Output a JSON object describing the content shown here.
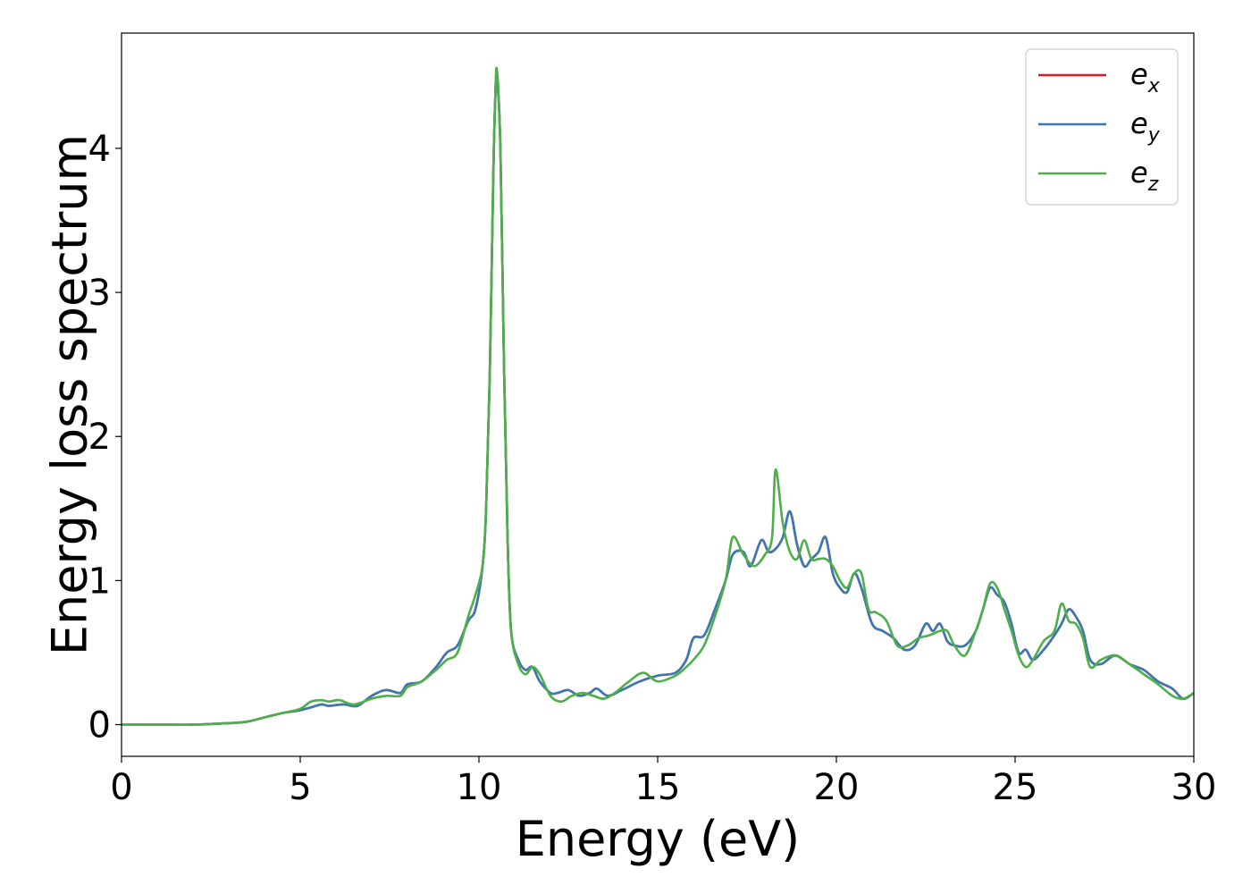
{
  "chart_data": {
    "type": "line",
    "title": "",
    "xlabel": "Energy (eV)",
    "ylabel": "Energy loss spectrum",
    "xlim": [
      0,
      30
    ],
    "ylim": [
      -0.22,
      4.8
    ],
    "xticks": [
      0,
      5,
      10,
      15,
      20,
      25,
      30
    ],
    "yticks": [
      0,
      1,
      2,
      3,
      4
    ],
    "xtick_labels": [
      "0",
      "5",
      "10",
      "15",
      "20",
      "25",
      "30"
    ],
    "ytick_labels": [
      "0",
      "1",
      "2",
      "3",
      "4"
    ],
    "grid": false,
    "legend_position": "top-right",
    "series": [
      {
        "name": "e_x",
        "legend_base": "e",
        "legend_sub": "x",
        "color": "#e41a1c",
        "x": [
          0,
          1,
          2,
          3,
          3.5,
          4,
          4.5,
          5,
          5.3,
          5.6,
          5.8,
          6.2,
          6.6,
          7,
          7.4,
          7.8,
          8,
          8.4,
          8.8,
          9.1,
          9.4,
          9.7,
          9.9,
          10.1,
          10.2,
          10.3,
          10.4,
          10.45,
          10.5,
          10.6,
          10.7,
          10.8,
          10.9,
          11.1,
          11.3,
          11.5,
          11.7,
          12,
          12.2,
          12.5,
          12.8,
          13.1,
          13.3,
          13.6,
          14,
          14.5,
          15,
          15.5,
          15.8,
          16,
          16.3,
          16.6,
          16.9,
          17.1,
          17.4,
          17.6,
          17.9,
          18.1,
          18.3,
          18.5,
          18.7,
          18.9,
          19.1,
          19.3,
          19.5,
          19.7,
          19.9,
          20.1,
          20.3,
          20.5,
          20.7,
          21,
          21.3,
          21.6,
          21.9,
          22.2,
          22.5,
          22.7,
          22.9,
          23.1,
          23.3,
          23.6,
          23.9,
          24.1,
          24.3,
          24.5,
          24.7,
          24.9,
          25.1,
          25.3,
          25.5,
          25.8,
          26.1,
          26.3,
          26.5,
          26.7,
          26.9,
          27.1,
          27.4,
          27.8,
          28.2,
          28.6,
          29,
          29.4,
          29.7,
          30
        ],
        "y": [
          0,
          0,
          0,
          0.01,
          0.02,
          0.05,
          0.08,
          0.1,
          0.12,
          0.14,
          0.13,
          0.14,
          0.13,
          0.2,
          0.24,
          0.22,
          0.28,
          0.3,
          0.4,
          0.5,
          0.55,
          0.72,
          0.8,
          1.1,
          1.5,
          2.4,
          3.8,
          4.3,
          4.5,
          4.0,
          2.5,
          1.3,
          0.65,
          0.45,
          0.38,
          0.4,
          0.3,
          0.22,
          0.22,
          0.24,
          0.2,
          0.22,
          0.25,
          0.2,
          0.24,
          0.3,
          0.34,
          0.36,
          0.45,
          0.6,
          0.62,
          0.8,
          1.0,
          1.18,
          1.2,
          1.1,
          1.28,
          1.2,
          1.22,
          1.3,
          1.48,
          1.25,
          1.1,
          1.15,
          1.2,
          1.3,
          1.05,
          0.95,
          0.92,
          1.05,
          0.95,
          0.7,
          0.65,
          0.6,
          0.52,
          0.55,
          0.7,
          0.65,
          0.7,
          0.58,
          0.55,
          0.55,
          0.65,
          0.8,
          0.95,
          0.9,
          0.85,
          0.7,
          0.5,
          0.52,
          0.45,
          0.52,
          0.62,
          0.7,
          0.8,
          0.75,
          0.65,
          0.45,
          0.42,
          0.48,
          0.42,
          0.38,
          0.3,
          0.25,
          0.18,
          0.22
        ]
      },
      {
        "name": "e_y",
        "legend_base": "e",
        "legend_sub": "y",
        "color": "#3a78b5",
        "x": [
          0,
          1,
          2,
          3,
          3.5,
          4,
          4.5,
          5,
          5.3,
          5.6,
          5.8,
          6.2,
          6.6,
          7,
          7.4,
          7.8,
          8,
          8.4,
          8.8,
          9.1,
          9.4,
          9.7,
          9.9,
          10.1,
          10.2,
          10.3,
          10.4,
          10.45,
          10.5,
          10.6,
          10.7,
          10.8,
          10.9,
          11.1,
          11.3,
          11.5,
          11.7,
          12,
          12.2,
          12.5,
          12.8,
          13.1,
          13.3,
          13.6,
          14,
          14.5,
          15,
          15.5,
          15.8,
          16,
          16.3,
          16.6,
          16.9,
          17.1,
          17.4,
          17.6,
          17.9,
          18.1,
          18.3,
          18.5,
          18.7,
          18.9,
          19.1,
          19.3,
          19.5,
          19.7,
          19.9,
          20.1,
          20.3,
          20.5,
          20.7,
          21,
          21.3,
          21.6,
          21.9,
          22.2,
          22.5,
          22.7,
          22.9,
          23.1,
          23.3,
          23.6,
          23.9,
          24.1,
          24.3,
          24.5,
          24.7,
          24.9,
          25.1,
          25.3,
          25.5,
          25.8,
          26.1,
          26.3,
          26.5,
          26.7,
          26.9,
          27.1,
          27.4,
          27.8,
          28.2,
          28.6,
          29,
          29.4,
          29.7,
          30
        ],
        "y": [
          0,
          0,
          0,
          0.01,
          0.02,
          0.05,
          0.08,
          0.1,
          0.12,
          0.14,
          0.13,
          0.14,
          0.13,
          0.2,
          0.24,
          0.22,
          0.28,
          0.3,
          0.4,
          0.5,
          0.55,
          0.72,
          0.8,
          1.1,
          1.5,
          2.4,
          3.8,
          4.3,
          4.5,
          4.0,
          2.5,
          1.3,
          0.65,
          0.45,
          0.38,
          0.4,
          0.3,
          0.22,
          0.22,
          0.24,
          0.2,
          0.22,
          0.25,
          0.2,
          0.24,
          0.3,
          0.34,
          0.36,
          0.45,
          0.6,
          0.62,
          0.8,
          1.0,
          1.18,
          1.2,
          1.1,
          1.28,
          1.2,
          1.22,
          1.3,
          1.48,
          1.25,
          1.1,
          1.15,
          1.2,
          1.3,
          1.05,
          0.95,
          0.92,
          1.05,
          0.95,
          0.7,
          0.65,
          0.6,
          0.52,
          0.55,
          0.7,
          0.65,
          0.7,
          0.58,
          0.55,
          0.55,
          0.65,
          0.8,
          0.95,
          0.9,
          0.85,
          0.7,
          0.5,
          0.52,
          0.45,
          0.52,
          0.62,
          0.7,
          0.8,
          0.75,
          0.65,
          0.45,
          0.42,
          0.48,
          0.42,
          0.38,
          0.3,
          0.25,
          0.18,
          0.22
        ]
      },
      {
        "name": "e_z",
        "legend_base": "e",
        "legend_sub": "z",
        "color": "#4daf4a",
        "x": [
          0,
          1,
          2,
          3,
          3.5,
          4,
          4.5,
          5,
          5.3,
          5.6,
          5.8,
          6.1,
          6.5,
          7,
          7.4,
          7.8,
          8,
          8.4,
          8.8,
          9.1,
          9.4,
          9.7,
          9.9,
          10.1,
          10.2,
          10.3,
          10.4,
          10.45,
          10.5,
          10.6,
          10.7,
          10.8,
          10.9,
          11.1,
          11.3,
          11.5,
          11.7,
          12,
          12.3,
          12.6,
          12.9,
          13.2,
          13.5,
          13.8,
          14.2,
          14.6,
          15,
          15.5,
          15.8,
          16,
          16.3,
          16.6,
          16.9,
          17.1,
          17.4,
          17.7,
          18,
          18.2,
          18.3,
          18.5,
          18.7,
          18.9,
          19.1,
          19.3,
          19.5,
          19.7,
          19.9,
          20.1,
          20.3,
          20.5,
          20.7,
          20.9,
          21.1,
          21.4,
          21.7,
          22,
          22.3,
          22.6,
          22.9,
          23.1,
          23.3,
          23.6,
          23.9,
          24.1,
          24.3,
          24.5,
          24.7,
          24.9,
          25.1,
          25.3,
          25.5,
          25.8,
          26.1,
          26.3,
          26.5,
          26.7,
          26.9,
          27.1,
          27.4,
          27.8,
          28.2,
          28.6,
          29,
          29.4,
          29.7,
          30
        ],
        "y": [
          0,
          0,
          0,
          0.01,
          0.02,
          0.05,
          0.08,
          0.11,
          0.16,
          0.17,
          0.16,
          0.17,
          0.14,
          0.18,
          0.2,
          0.2,
          0.26,
          0.3,
          0.38,
          0.45,
          0.5,
          0.75,
          0.9,
          1.1,
          1.5,
          2.4,
          3.8,
          4.3,
          4.55,
          4.0,
          2.5,
          1.3,
          0.65,
          0.42,
          0.35,
          0.4,
          0.35,
          0.2,
          0.16,
          0.2,
          0.22,
          0.2,
          0.18,
          0.22,
          0.3,
          0.36,
          0.3,
          0.34,
          0.4,
          0.45,
          0.55,
          0.75,
          1.0,
          1.3,
          1.18,
          1.1,
          1.18,
          1.3,
          1.77,
          1.4,
          1.2,
          1.15,
          1.28,
          1.15,
          1.15,
          1.15,
          1.1,
          1.0,
          0.95,
          1.05,
          1.05,
          0.8,
          0.78,
          0.72,
          0.55,
          0.55,
          0.6,
          0.62,
          0.65,
          0.65,
          0.55,
          0.48,
          0.65,
          0.8,
          0.98,
          0.95,
          0.8,
          0.65,
          0.48,
          0.4,
          0.45,
          0.58,
          0.65,
          0.84,
          0.72,
          0.7,
          0.6,
          0.4,
          0.45,
          0.48,
          0.42,
          0.35,
          0.28,
          0.2,
          0.18,
          0.22
        ]
      }
    ]
  }
}
